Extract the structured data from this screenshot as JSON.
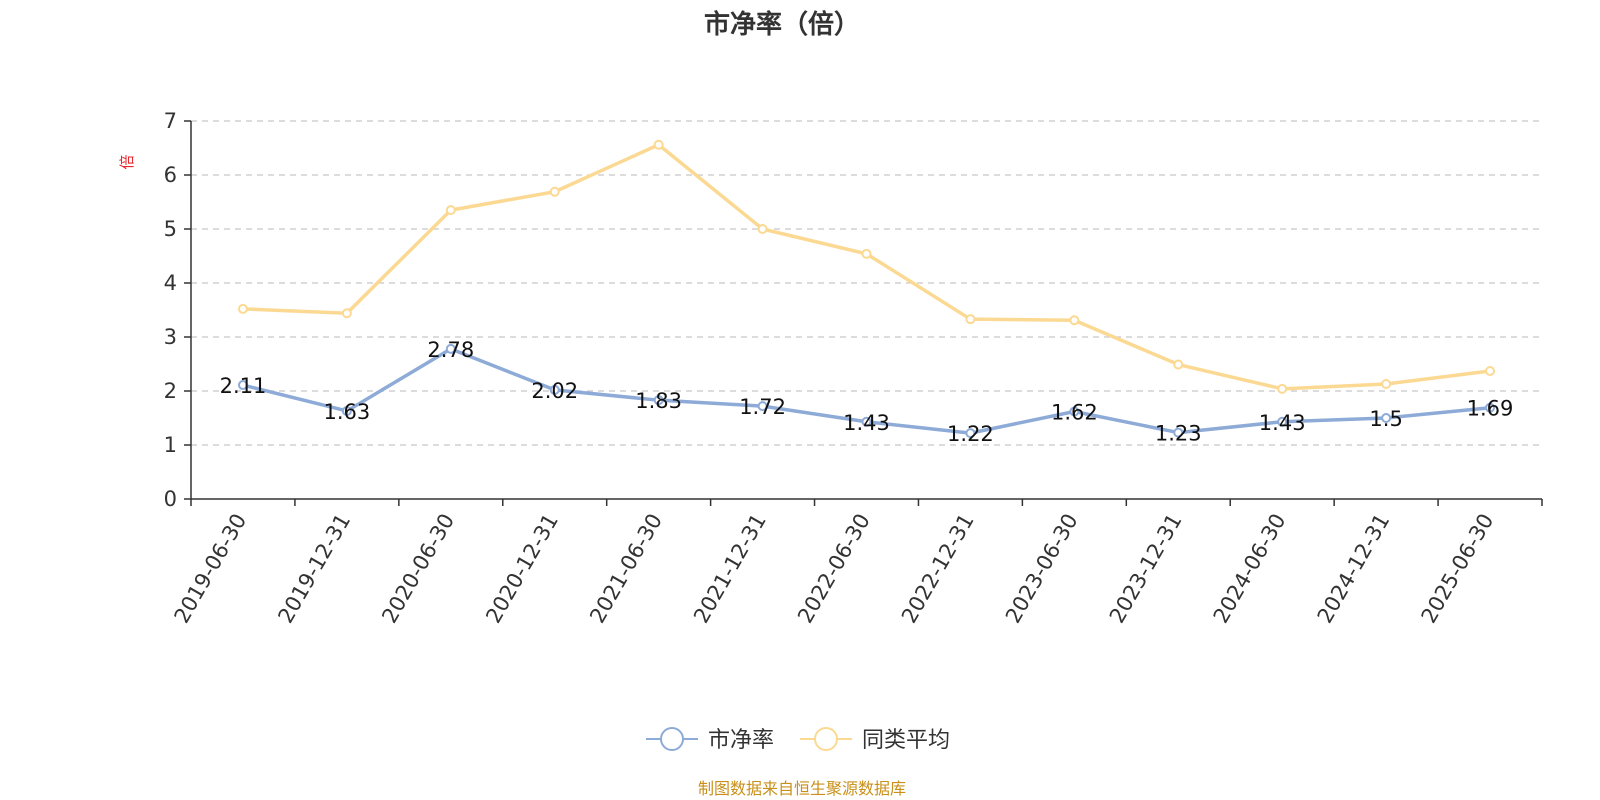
{
  "chart_data": {
    "type": "line",
    "title": "市净率（倍）",
    "y_unit": "倍",
    "categories": [
      "2019-06-30",
      "2019-12-31",
      "2020-06-30",
      "2020-12-31",
      "2021-06-30",
      "2021-12-31",
      "2022-06-30",
      "2022-12-31",
      "2023-06-30",
      "2023-12-31",
      "2024-06-30",
      "2024-12-31",
      "2025-06-30"
    ],
    "series": [
      {
        "name": "市净率",
        "color": "#8eabd8",
        "values": [
          2.11,
          1.63,
          2.78,
          2.02,
          1.83,
          1.72,
          1.43,
          1.22,
          1.62,
          1.23,
          1.43,
          1.5,
          1.69
        ],
        "labels": [
          "2.11",
          "1.63",
          "2.78",
          "2.02",
          "1.83",
          "1.72",
          "1.43",
          "1.22",
          "1.62",
          "1.23",
          "1.43",
          "1.5",
          "1.69"
        ]
      },
      {
        "name": "同类平均",
        "color": "#fbd993",
        "values": [
          3.52,
          3.44,
          5.35,
          5.69,
          6.56,
          5.0,
          4.54,
          3.33,
          3.31,
          2.49,
          2.04,
          2.13,
          2.37
        ]
      }
    ],
    "ylim": [
      0,
      7
    ],
    "yticks": [
      "0",
      "1",
      "2",
      "3",
      "4",
      "5",
      "6",
      "7"
    ],
    "grid": true,
    "legend_position": "bottom-center"
  },
  "source": "制图数据来自恒生聚源数据库"
}
